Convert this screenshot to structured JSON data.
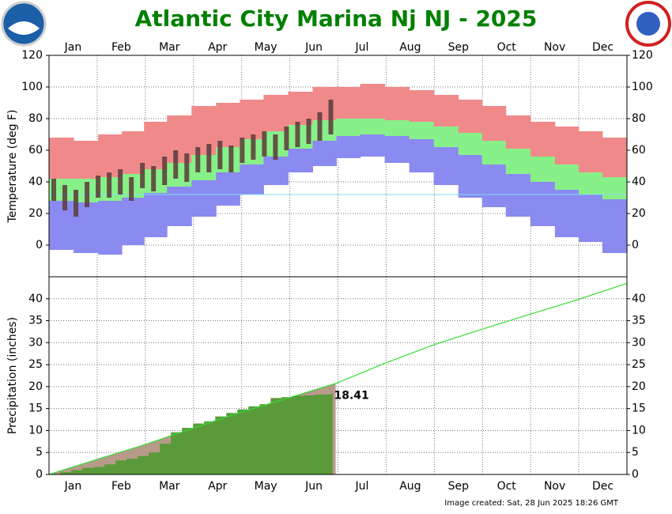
{
  "title": "Atlantic City Marina Nj NJ - 2025",
  "footer": "Image created: Sat, 28 Jun 2025 18:26 GMT",
  "chart_data": [
    {
      "type": "temperature_band",
      "ylabel": "Temperature (deg F)",
      "categories": [
        "Jan",
        "Feb",
        "Mar",
        "Apr",
        "May",
        "Jun",
        "Jul",
        "Aug",
        "Sep",
        "Oct",
        "Nov",
        "Dec"
      ],
      "xlim": [
        0,
        365
      ],
      "ylim": [
        -20,
        120
      ],
      "yticks": [
        0,
        20,
        40,
        60,
        80,
        100,
        120
      ],
      "grid": true,
      "x": [
        8,
        23,
        39,
        53,
        67,
        82,
        98,
        113,
        128,
        143,
        159,
        174,
        189,
        204,
        220,
        235,
        251,
        266,
        281,
        296,
        312,
        327,
        342,
        357
      ],
      "record_high": [
        68,
        66,
        70,
        72,
        78,
        82,
        88,
        90,
        92,
        95,
        97,
        100,
        100,
        102,
        100,
        98,
        95,
        92,
        88,
        82,
        78,
        75,
        72,
        68
      ],
      "normal_high": [
        42,
        42,
        43,
        45,
        48,
        52,
        57,
        62,
        67,
        72,
        76,
        79,
        80,
        80,
        79,
        78,
        75,
        71,
        66,
        61,
        56,
        51,
        46,
        43
      ],
      "normal_low": [
        28,
        27,
        28,
        30,
        33,
        37,
        41,
        46,
        51,
        56,
        61,
        66,
        69,
        70,
        69,
        67,
        62,
        57,
        51,
        45,
        40,
        35,
        32,
        29
      ],
      "record_low": [
        -3,
        -5,
        -6,
        0,
        5,
        12,
        18,
        25,
        32,
        38,
        46,
        50,
        55,
        56,
        52,
        46,
        38,
        30,
        24,
        18,
        12,
        5,
        2,
        -5
      ],
      "record_high_color": "#f08a8a",
      "normal_color": "#88f088",
      "record_low_color": "#8a8af0",
      "observed_x": [
        3,
        10,
        17,
        24,
        31,
        38,
        45,
        52,
        59,
        66,
        73,
        80,
        87,
        94,
        101,
        108,
        115,
        122,
        129,
        136,
        143,
        150,
        157,
        164,
        171,
        178
      ],
      "observed_high": [
        42,
        38,
        35,
        40,
        44,
        46,
        48,
        43,
        52,
        50,
        56,
        60,
        58,
        62,
        64,
        66,
        63,
        68,
        70,
        72,
        70,
        75,
        78,
        80,
        84,
        92
      ],
      "observed_low": [
        28,
        22,
        18,
        24,
        30,
        30,
        32,
        28,
        36,
        34,
        38,
        42,
        40,
        46,
        46,
        48,
        46,
        52,
        54,
        56,
        54,
        60,
        62,
        64,
        66,
        70
      ],
      "observed_color": "#5a3a3a",
      "freeze_line": 32,
      "freeze_color": "#7fe0f0"
    },
    {
      "type": "precipitation",
      "ylabel": "Precipitation (inches)",
      "categories": [
        "Jan",
        "Feb",
        "Mar",
        "Apr",
        "May",
        "Jun",
        "Jul",
        "Aug",
        "Sep",
        "Oct",
        "Nov",
        "Dec"
      ],
      "xlim": [
        0,
        365
      ],
      "ylim": [
        0,
        45
      ],
      "yticks": [
        0,
        5,
        10,
        15,
        20,
        25,
        30,
        35,
        40
      ],
      "grid": true,
      "normal_x": [
        0,
        31,
        59,
        90,
        120,
        151,
        181,
        212,
        243,
        273,
        304,
        334,
        365
      ],
      "normal": [
        0,
        3.5,
        6.6,
        10.4,
        14.0,
        17.4,
        20.7,
        25.3,
        29.5,
        33.0,
        36.5,
        39.8,
        43.5
      ],
      "normal_color": "#33dd33",
      "normal_area_color": "#b89a8a",
      "observed_x": [
        0,
        7,
        14,
        21,
        28,
        35,
        42,
        49,
        56,
        63,
        70,
        77,
        84,
        91,
        98,
        105,
        112,
        119,
        126,
        133,
        140,
        147,
        154,
        161,
        168,
        178
      ],
      "observed": [
        0,
        0.5,
        1.0,
        1.5,
        1.7,
        2.3,
        3.2,
        3.6,
        4.2,
        5.0,
        7.0,
        9.6,
        10.6,
        11.6,
        12.1,
        13.2,
        14.0,
        14.8,
        15.5,
        16.0,
        17.4,
        17.6,
        17.9,
        18.0,
        18.2,
        18.41
      ],
      "observed_color": "#5a9a3a",
      "value_label": "18.41"
    }
  ]
}
